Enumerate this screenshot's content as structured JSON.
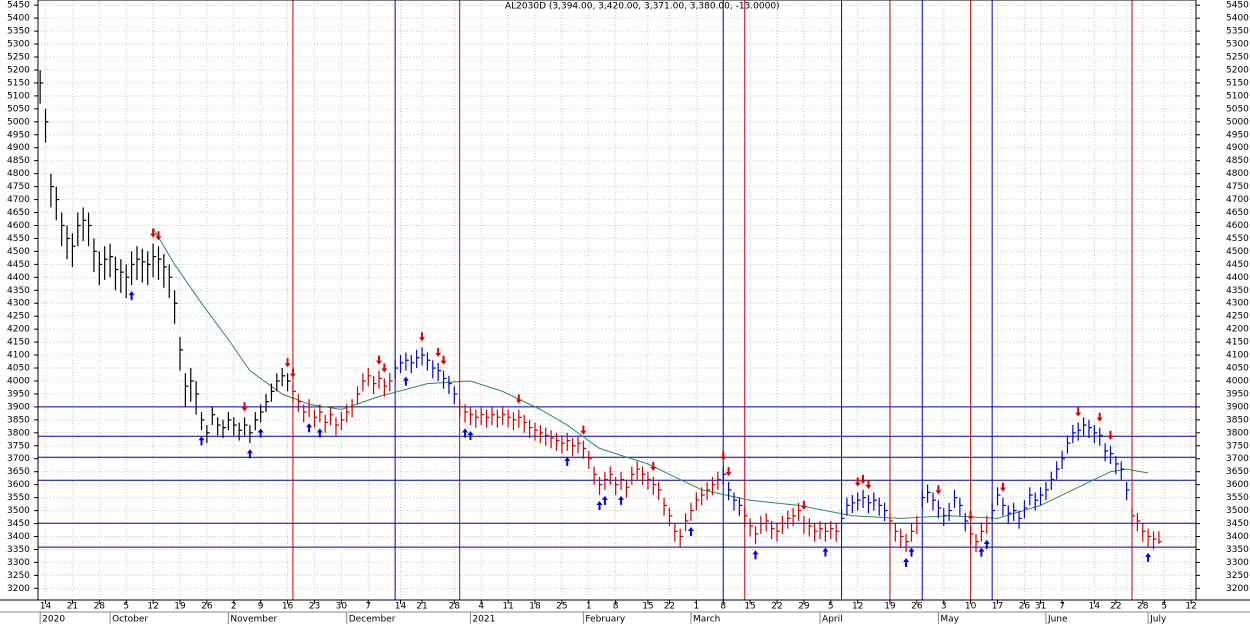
{
  "chart_data": {
    "type": "ohlc",
    "title": "AL2030D (3,394.00, 3,420.00, 3,371.00, 3,380.00, -13.0000)",
    "bar_color": "#000000",
    "high": [
      5200,
      5050,
      4800,
      4750,
      4650,
      4600,
      4570,
      4650,
      4670,
      4650,
      4550,
      4500,
      4520,
      4530,
      4480,
      4470,
      4450,
      4500,
      4520,
      4510,
      4500,
      4530,
      4520,
      4490,
      4450,
      4350,
      4170,
      4030,
      4050,
      4000,
      3880,
      3830,
      3900,
      3860,
      3850,
      3880,
      3860,
      3840,
      3860,
      3830,
      3880,
      3910,
      3950,
      3990,
      4030,
      4050,
      4030,
      3990,
      3950,
      3910,
      3930,
      3890,
      3910,
      3870,
      3900,
      3860,
      3880,
      3910,
      3930,
      3980,
      4030,
      4050,
      4020,
      4040,
      4010,
      4030,
      4080,
      4100,
      4110,
      4100,
      4120,
      4130,
      4110,
      4080,
      4070,
      4040,
      4020,
      3980,
      3930,
      3910,
      3900,
      3890,
      3900,
      3890,
      3900,
      3890,
      3900,
      3890,
      3880,
      3890,
      3870,
      3850,
      3840,
      3830,
      3820,
      3810,
      3800,
      3790,
      3800,
      3780,
      3790,
      3770,
      3730,
      3670,
      3630,
      3650,
      3670,
      3630,
      3650,
      3620,
      3670,
      3690,
      3670,
      3650,
      3630,
      3610,
      3550,
      3510,
      3450,
      3430,
      3490,
      3530,
      3570,
      3590,
      3610,
      3630,
      3650,
      3670,
      3610,
      3570,
      3550,
      3510,
      3470,
      3440,
      3480,
      3490,
      3460,
      3450,
      3480,
      3500,
      3510,
      3530,
      3480,
      3470,
      3450,
      3460,
      3450,
      3460,
      3450,
      3500,
      3550,
      3560,
      3570,
      3580,
      3560,
      3570,
      3550,
      3530,
      3490,
      3450,
      3430,
      3410,
      3450,
      3480,
      3580,
      3600,
      3570,
      3540,
      3510,
      3530,
      3580,
      3550,
      3490,
      3440,
      3410,
      3450,
      3480,
      3530,
      3590,
      3550,
      3520,
      3530,
      3500,
      3540,
      3590,
      3570,
      3590,
      3610,
      3650,
      3690,
      3730,
      3790,
      3830,
      3840,
      3860,
      3850,
      3830,
      3820,
      3760,
      3750,
      3710,
      3690,
      3610,
      3510,
      3490,
      3450,
      3430,
      3420,
      3420
    ],
    "low": [
      5070,
      4920,
      4670,
      4620,
      4520,
      4470,
      4440,
      4520,
      4540,
      4520,
      4420,
      4370,
      4390,
      4400,
      4350,
      4340,
      4320,
      4370,
      4390,
      4380,
      4370,
      4400,
      4390,
      4360,
      4320,
      4220,
      4040,
      3900,
      3920,
      3870,
      3810,
      3760,
      3830,
      3790,
      3780,
      3810,
      3790,
      3770,
      3790,
      3760,
      3810,
      3840,
      3880,
      3920,
      3960,
      3980,
      3960,
      3920,
      3880,
      3840,
      3860,
      3820,
      3840,
      3800,
      3830,
      3790,
      3810,
      3840,
      3860,
      3910,
      3960,
      3980,
      3950,
      3970,
      3940,
      3960,
      4010,
      4030,
      4040,
      4030,
      4050,
      4060,
      4040,
      4010,
      4000,
      3970,
      3950,
      3910,
      3860,
      3840,
      3830,
      3820,
      3830,
      3820,
      3830,
      3820,
      3830,
      3820,
      3810,
      3820,
      3800,
      3780,
      3770,
      3760,
      3750,
      3740,
      3730,
      3720,
      3730,
      3710,
      3720,
      3700,
      3660,
      3600,
      3560,
      3580,
      3600,
      3560,
      3580,
      3550,
      3600,
      3620,
      3600,
      3580,
      3560,
      3540,
      3480,
      3440,
      3380,
      3360,
      3420,
      3460,
      3500,
      3520,
      3540,
      3560,
      3580,
      3600,
      3540,
      3500,
      3480,
      3440,
      3400,
      3370,
      3410,
      3420,
      3390,
      3380,
      3410,
      3430,
      3440,
      3460,
      3410,
      3400,
      3380,
      3390,
      3380,
      3390,
      3380,
      3430,
      3480,
      3490,
      3500,
      3510,
      3490,
      3500,
      3480,
      3460,
      3420,
      3380,
      3360,
      3340,
      3380,
      3410,
      3510,
      3530,
      3500,
      3470,
      3440,
      3460,
      3510,
      3480,
      3420,
      3370,
      3340,
      3380,
      3410,
      3460,
      3520,
      3480,
      3450,
      3460,
      3430,
      3470,
      3520,
      3500,
      3520,
      3540,
      3580,
      3620,
      3660,
      3720,
      3760,
      3770,
      3790,
      3780,
      3760,
      3750,
      3690,
      3680,
      3640,
      3620,
      3540,
      3440,
      3420,
      3380,
      3360,
      3350,
      3371
    ],
    "close": [
      5150,
      5000,
      4750,
      4700,
      4600,
      4550,
      4520,
      4600,
      4620,
      4600,
      4500,
      4450,
      4470,
      4480,
      4430,
      4420,
      4400,
      4450,
      4470,
      4460,
      4450,
      4480,
      4470,
      4440,
      4400,
      4300,
      4120,
      3980,
      4000,
      3950,
      3850,
      3800,
      3870,
      3830,
      3820,
      3850,
      3830,
      3810,
      3830,
      3800,
      3850,
      3880,
      3920,
      3960,
      4000,
      4020,
      4000,
      3960,
      3920,
      3880,
      3900,
      3860,
      3880,
      3840,
      3870,
      3830,
      3850,
      3880,
      3900,
      3950,
      4000,
      4020,
      3990,
      4010,
      3980,
      4000,
      4050,
      4070,
      4080,
      4070,
      4090,
      4100,
      4080,
      4050,
      4040,
      4010,
      3990,
      3950,
      3900,
      3880,
      3870,
      3860,
      3870,
      3860,
      3870,
      3860,
      3870,
      3860,
      3850,
      3860,
      3840,
      3820,
      3810,
      3800,
      3790,
      3780,
      3770,
      3760,
      3770,
      3750,
      3760,
      3740,
      3700,
      3640,
      3600,
      3620,
      3640,
      3600,
      3620,
      3590,
      3640,
      3660,
      3640,
      3620,
      3600,
      3580,
      3520,
      3480,
      3420,
      3400,
      3460,
      3500,
      3540,
      3560,
      3580,
      3600,
      3620,
      3640,
      3580,
      3540,
      3520,
      3480,
      3440,
      3410,
      3450,
      3460,
      3430,
      3420,
      3450,
      3470,
      3480,
      3500,
      3450,
      3440,
      3420,
      3430,
      3420,
      3430,
      3420,
      3470,
      3520,
      3530,
      3540,
      3550,
      3530,
      3540,
      3520,
      3500,
      3460,
      3420,
      3400,
      3380,
      3420,
      3450,
      3550,
      3570,
      3540,
      3510,
      3480,
      3500,
      3550,
      3520,
      3460,
      3410,
      3380,
      3420,
      3450,
      3500,
      3560,
      3520,
      3490,
      3500,
      3470,
      3510,
      3560,
      3540,
      3560,
      3580,
      3620,
      3660,
      3700,
      3760,
      3800,
      3810,
      3830,
      3820,
      3800,
      3790,
      3730,
      3720,
      3680,
      3660,
      3580,
      3480,
      3460,
      3420,
      3400,
      3390,
      3380
    ],
    "ma": {
      "color": "#2e8b57",
      "x": [
        21,
        25,
        30,
        35,
        39,
        45,
        50,
        56,
        63,
        72,
        80,
        86,
        93,
        98,
        104,
        113,
        118,
        123,
        132,
        141,
        151,
        160,
        169,
        178,
        186,
        193,
        199,
        202,
        206
      ],
      "values": [
        4590,
        4450,
        4300,
        4160,
        4040,
        3950,
        3910,
        3890,
        3940,
        3990,
        4000,
        3960,
        3890,
        3830,
        3740,
        3680,
        3630,
        3580,
        3540,
        3520,
        3480,
        3470,
        3480,
        3470,
        3520,
        3590,
        3650,
        3660,
        3645
      ]
    },
    "hlines": {
      "color": "#0000aa",
      "values": [
        3900,
        3787,
        3706,
        3617,
        3451,
        3359
      ]
    },
    "vlines": [
      {
        "x": 47,
        "color": "#cc0000"
      },
      {
        "x": 66,
        "color": "#0000cc"
      },
      {
        "x": 78,
        "color": "#cc0000"
      },
      {
        "x": 127,
        "color": "#0000cc"
      },
      {
        "x": 131,
        "color": "#cc0000"
      },
      {
        "x": 149,
        "color": "#0000cc"
      },
      {
        "x": 158,
        "color": "#cc0000"
      },
      {
        "x": 164,
        "color": "#0000cc"
      },
      {
        "x": 173,
        "color": "#cc0000"
      },
      {
        "x": 177,
        "color": "#0000cc"
      },
      {
        "x": 203,
        "color": "#cc0000"
      }
    ],
    "buy_signals": {
      "color": "#0000dd",
      "x": [
        17,
        30,
        39,
        41,
        50,
        52,
        68,
        79,
        80,
        98,
        104,
        105,
        108,
        121,
        133,
        146,
        161,
        162,
        175,
        176,
        206
      ]
    },
    "sell_signals": {
      "color": "#dd0000",
      "x": [
        21,
        22,
        38,
        46,
        47,
        63,
        64,
        71,
        74,
        75,
        89,
        101,
        114,
        127,
        128,
        142,
        152,
        153,
        154,
        167,
        173,
        179,
        193,
        197,
        199
      ]
    },
    "xlim": [
      -0.4,
      214.9
    ],
    "ylim": [
      3155,
      5470
    ],
    "xticks": [
      {
        "value": 1,
        "label": "14"
      },
      {
        "value": 6,
        "label": "21"
      },
      {
        "value": 11,
        "label": "28"
      },
      {
        "value": 16,
        "label": "5"
      },
      {
        "value": 21,
        "label": "12"
      },
      {
        "value": 26,
        "label": "19"
      },
      {
        "value": 31,
        "label": "26"
      },
      {
        "value": 36,
        "label": "2"
      },
      {
        "value": 41,
        "label": "9"
      },
      {
        "value": 46,
        "label": "16"
      },
      {
        "value": 51,
        "label": "23"
      },
      {
        "value": 56,
        "label": "30"
      },
      {
        "value": 61,
        "label": "7"
      },
      {
        "value": 67,
        "label": "14"
      },
      {
        "value": 71,
        "label": "21"
      },
      {
        "value": 77,
        "label": "28"
      },
      {
        "value": 82,
        "label": "4"
      },
      {
        "value": 87,
        "label": "11"
      },
      {
        "value": 92,
        "label": "18"
      },
      {
        "value": 97,
        "label": "25"
      },
      {
        "value": 102,
        "label": "1"
      },
      {
        "value": 107,
        "label": "8"
      },
      {
        "value": 113,
        "label": "15"
      },
      {
        "value": 117,
        "label": "22"
      },
      {
        "value": 122,
        "label": "1"
      },
      {
        "value": 127,
        "label": "8"
      },
      {
        "value": 132,
        "label": "15"
      },
      {
        "value": 137,
        "label": "22"
      },
      {
        "value": 142,
        "label": "29"
      },
      {
        "value": 147,
        "label": "5"
      },
      {
        "value": 152,
        "label": "12"
      },
      {
        "value": 158,
        "label": "19"
      },
      {
        "value": 163,
        "label": "26"
      },
      {
        "value": 168,
        "label": "3"
      },
      {
        "value": 173,
        "label": "10"
      },
      {
        "value": 178,
        "label": "17"
      },
      {
        "value": 183,
        "label": "26"
      },
      {
        "value": 186,
        "label": "31"
      },
      {
        "value": 190,
        "label": "7"
      },
      {
        "value": 196,
        "label": "14"
      },
      {
        "value": 200,
        "label": "22"
      },
      {
        "value": 205,
        "label": "28"
      },
      {
        "value": 209,
        "label": "5"
      },
      {
        "value": 214,
        "label": "12"
      }
    ],
    "month_ticks": [
      {
        "value": 0,
        "label": "2020"
      },
      {
        "value": 13,
        "label": "October"
      },
      {
        "value": 35,
        "label": "November"
      },
      {
        "value": 57,
        "label": "December"
      },
      {
        "value": 80,
        "label": "2021"
      },
      {
        "value": 101,
        "label": "February"
      },
      {
        "value": 121,
        "label": "March"
      },
      {
        "value": 145,
        "label": "April"
      },
      {
        "value": 167,
        "label": "May"
      },
      {
        "value": 187,
        "label": "June"
      },
      {
        "value": 206,
        "label": "July"
      }
    ],
    "yticks": [
      3200,
      3250,
      3300,
      3350,
      3400,
      3450,
      3500,
      3550,
      3600,
      3650,
      3700,
      3750,
      3800,
      3850,
      3900,
      3950,
      4000,
      4050,
      4100,
      4150,
      4200,
      4250,
      4300,
      4350,
      4400,
      4450,
      4500,
      4550,
      4600,
      4650,
      4700,
      4750,
      4800,
      4850,
      4900,
      4950,
      5000,
      5050,
      5100,
      5150,
      5200,
      5250,
      5300,
      5350,
      5400,
      5450
    ],
    "grid": true
  }
}
